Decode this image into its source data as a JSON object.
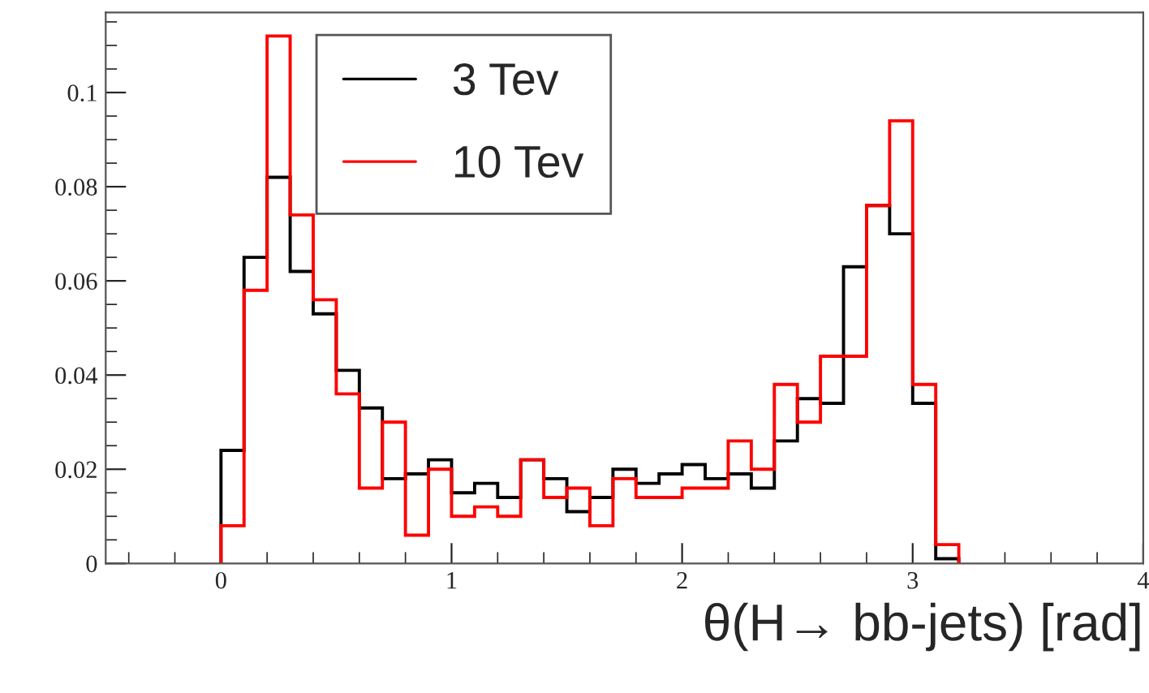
{
  "chart_data": {
    "type": "histogram",
    "xlabel": "θ(H→ bb-jets) [rad]",
    "bins": [
      0,
      0.1,
      0.2,
      0.3,
      0.4,
      0.5,
      0.6,
      0.7,
      0.8,
      0.9,
      1.0,
      1.1,
      1.2,
      1.3,
      1.4,
      1.5,
      1.6,
      1.7,
      1.8,
      1.9,
      2.0,
      2.1,
      2.2,
      2.3,
      2.4,
      2.5,
      2.6,
      2.7,
      2.8,
      2.9,
      3.0,
      3.1,
      3.2
    ],
    "series": [
      {
        "name": "3 Tev",
        "color": "#000000",
        "values": [
          0.024,
          0.065,
          0.082,
          0.062,
          0.053,
          0.041,
          0.033,
          0.018,
          0.019,
          0.022,
          0.015,
          0.017,
          0.014,
          0.022,
          0.018,
          0.011,
          0.014,
          0.02,
          0.017,
          0.019,
          0.021,
          0.018,
          0.019,
          0.016,
          0.026,
          0.035,
          0.034,
          0.063,
          0.076,
          0.07,
          0.034,
          0.001
        ]
      },
      {
        "name": "10 Tev",
        "color": "#ff0000",
        "values": [
          0.008,
          0.058,
          0.112,
          0.074,
          0.056,
          0.036,
          0.016,
          0.03,
          0.006,
          0.02,
          0.01,
          0.012,
          0.01,
          0.022,
          0.014,
          0.016,
          0.008,
          0.018,
          0.014,
          0.014,
          0.016,
          0.016,
          0.026,
          0.02,
          0.038,
          0.03,
          0.044,
          0.044,
          0.076,
          0.094,
          0.038,
          0.004
        ]
      }
    ],
    "xlim": [
      -0.5,
      4
    ],
    "ylim": [
      0,
      0.117
    ],
    "xticks": [
      0,
      1,
      2,
      3,
      4
    ],
    "yticks": [
      0,
      0.02,
      0.04,
      0.06,
      0.08,
      0.1
    ],
    "legend": "top left",
    "grid": false
  }
}
